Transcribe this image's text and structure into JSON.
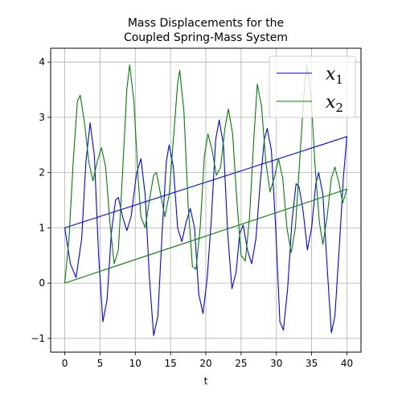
{
  "chart_data": {
    "type": "line",
    "title_lines": [
      "Mass Displacements for the",
      "Coupled Spring-Mass System"
    ],
    "xlabel": "t",
    "ylabel": "",
    "xlim": [
      -2,
      42
    ],
    "ylim": [
      -1.25,
      4.25
    ],
    "xticks": [
      0,
      5,
      10,
      15,
      20,
      25,
      30,
      35,
      40
    ],
    "yticks": [
      -1,
      0,
      1,
      2,
      3,
      4
    ],
    "grid": true,
    "legend_position": "top-right",
    "series": [
      {
        "name": "x1",
        "legend_base": "x",
        "legend_sub": "1",
        "color": "#0000ff",
        "points": [
          [
            0,
            1.0
          ],
          [
            0.8,
            0.35
          ],
          [
            1.6,
            0.1
          ],
          [
            2.4,
            0.8
          ],
          [
            3.0,
            2.2
          ],
          [
            3.6,
            2.9
          ],
          [
            4.2,
            2.3
          ],
          [
            4.8,
            0.5
          ],
          [
            5.4,
            -0.7
          ],
          [
            6.0,
            -0.3
          ],
          [
            6.6,
            0.9
          ],
          [
            7.2,
            1.5
          ],
          [
            7.6,
            1.55
          ],
          [
            8.2,
            1.2
          ],
          [
            8.8,
            0.95
          ],
          [
            9.4,
            1.2
          ],
          [
            10.2,
            2.0
          ],
          [
            10.8,
            2.25
          ],
          [
            11.4,
            1.6
          ],
          [
            12.0,
            0.1
          ],
          [
            12.6,
            -0.95
          ],
          [
            13.2,
            -0.6
          ],
          [
            13.8,
            0.9
          ],
          [
            14.4,
            2.2
          ],
          [
            14.8,
            2.5
          ],
          [
            15.4,
            2.1
          ],
          [
            16.0,
            1.0
          ],
          [
            16.6,
            0.75
          ],
          [
            17.2,
            1.1
          ],
          [
            17.8,
            1.35
          ],
          [
            18.4,
            1.0
          ],
          [
            19.0,
            -0.2
          ],
          [
            19.6,
            -0.55
          ],
          [
            20.2,
            0.1
          ],
          [
            20.8,
            1.2
          ],
          [
            21.4,
            2.6
          ],
          [
            21.9,
            2.95
          ],
          [
            22.5,
            2.5
          ],
          [
            23.1,
            0.9
          ],
          [
            23.7,
            -0.1
          ],
          [
            24.3,
            0.2
          ],
          [
            24.8,
            0.9
          ],
          [
            25.3,
            1.05
          ],
          [
            25.9,
            0.6
          ],
          [
            26.5,
            0.35
          ],
          [
            27.1,
            0.8
          ],
          [
            27.7,
            1.8
          ],
          [
            28.3,
            2.6
          ],
          [
            28.7,
            2.8
          ],
          [
            29.3,
            2.4
          ],
          [
            29.9,
            1.0
          ],
          [
            30.5,
            -0.7
          ],
          [
            31.0,
            -0.85
          ],
          [
            31.6,
            -0.1
          ],
          [
            32.2,
            1.1
          ],
          [
            32.8,
            1.8
          ],
          [
            33.2,
            1.75
          ],
          [
            33.8,
            1.3
          ],
          [
            34.4,
            0.6
          ],
          [
            35.0,
            1.0
          ],
          [
            35.6,
            1.8
          ],
          [
            36.0,
            2.0
          ],
          [
            36.6,
            1.6
          ],
          [
            37.2,
            0.3
          ],
          [
            37.8,
            -0.9
          ],
          [
            38.3,
            -0.6
          ],
          [
            38.9,
            0.6
          ],
          [
            39.5,
            1.9
          ],
          [
            40.0,
            2.65
          ]
        ]
      },
      {
        "name": "x2",
        "legend_base": "x",
        "legend_sub": "2",
        "color": "#008000",
        "points": [
          [
            0,
            0.0
          ],
          [
            0.6,
            0.8
          ],
          [
            1.2,
            2.2
          ],
          [
            1.8,
            3.3
          ],
          [
            2.2,
            3.4
          ],
          [
            2.8,
            2.9
          ],
          [
            3.4,
            2.2
          ],
          [
            4.0,
            1.85
          ],
          [
            4.6,
            2.2
          ],
          [
            5.2,
            2.45
          ],
          [
            5.8,
            2.1
          ],
          [
            6.4,
            1.1
          ],
          [
            7.0,
            0.35
          ],
          [
            7.6,
            0.6
          ],
          [
            8.2,
            2.0
          ],
          [
            8.8,
            3.5
          ],
          [
            9.2,
            3.95
          ],
          [
            9.8,
            3.3
          ],
          [
            10.4,
            1.9
          ],
          [
            10.8,
            1.2
          ],
          [
            11.4,
            1.0
          ],
          [
            12.0,
            1.5
          ],
          [
            12.6,
            1.95
          ],
          [
            13.0,
            2.0
          ],
          [
            13.6,
            1.6
          ],
          [
            14.2,
            1.2
          ],
          [
            14.8,
            1.6
          ],
          [
            15.4,
            2.6
          ],
          [
            16.0,
            3.6
          ],
          [
            16.3,
            3.85
          ],
          [
            16.9,
            3.1
          ],
          [
            17.5,
            1.4
          ],
          [
            18.1,
            0.3
          ],
          [
            18.6,
            0.25
          ],
          [
            19.2,
            1.0
          ],
          [
            19.8,
            2.3
          ],
          [
            20.3,
            2.7
          ],
          [
            20.9,
            2.4
          ],
          [
            21.5,
            1.95
          ],
          [
            22.1,
            2.1
          ],
          [
            22.7,
            2.8
          ],
          [
            23.2,
            3.15
          ],
          [
            23.8,
            2.7
          ],
          [
            24.4,
            1.5
          ],
          [
            25.0,
            0.5
          ],
          [
            25.6,
            0.4
          ],
          [
            26.2,
            1.2
          ],
          [
            26.8,
            2.6
          ],
          [
            27.3,
            3.6
          ],
          [
            27.9,
            3.2
          ],
          [
            28.5,
            2.2
          ],
          [
            29.1,
            1.65
          ],
          [
            29.7,
            1.9
          ],
          [
            30.3,
            2.25
          ],
          [
            30.9,
            1.9
          ],
          [
            31.5,
            1.0
          ],
          [
            32.1,
            0.55
          ],
          [
            32.7,
            1.0
          ],
          [
            33.3,
            2.2
          ],
          [
            33.9,
            3.4
          ],
          [
            34.3,
            3.95
          ],
          [
            34.9,
            3.4
          ],
          [
            35.5,
            2.1
          ],
          [
            36.1,
            1.1
          ],
          [
            36.6,
            0.7
          ],
          [
            37.2,
            1.2
          ],
          [
            37.8,
            1.9
          ],
          [
            38.3,
            2.1
          ],
          [
            38.9,
            1.8
          ],
          [
            39.4,
            1.45
          ],
          [
            40.0,
            1.7
          ]
        ]
      }
    ]
  }
}
